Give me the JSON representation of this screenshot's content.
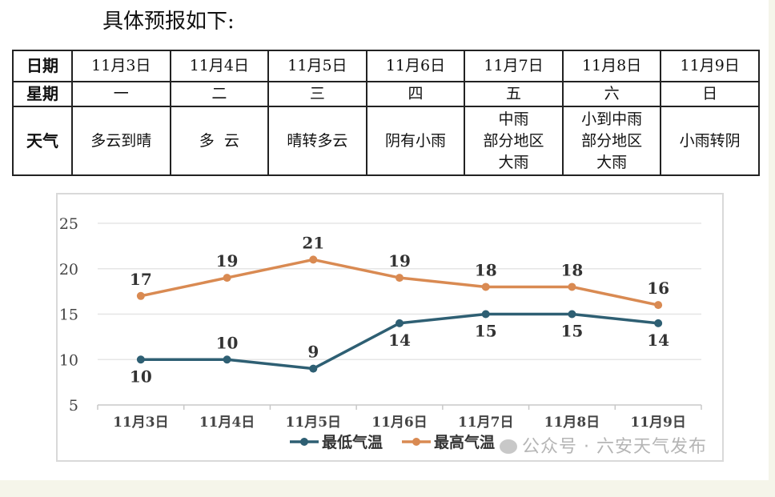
{
  "intro_text": "具体预报如下:",
  "table": {
    "row_labels": {
      "date": "日期",
      "day": "星期",
      "weather": "天气"
    },
    "dates": [
      "11月3日",
      "11月4日",
      "11月5日",
      "11月6日",
      "11月7日",
      "11月8日",
      "11月9日"
    ],
    "weekdays": [
      "一",
      "二",
      "三",
      "四",
      "五",
      "六",
      "日"
    ],
    "weather": [
      [
        "多云到晴"
      ],
      [
        "多  云"
      ],
      [
        "晴转多云"
      ],
      [
        "阴有小雨"
      ],
      [
        "中雨",
        "部分地区",
        "大雨"
      ],
      [
        "小到中雨",
        "部分地区",
        "大雨"
      ],
      [
        "小雨转阴"
      ]
    ]
  },
  "chart_data": {
    "type": "line",
    "categories": [
      "11月3日",
      "11月4日",
      "11月5日",
      "11月6日",
      "11月7日",
      "11月8日",
      "11月9日"
    ],
    "series": [
      {
        "name": "最低气温",
        "values": [
          10,
          10,
          9,
          14,
          15,
          15,
          14
        ],
        "color": "#2e5f73"
      },
      {
        "name": "最高气温",
        "values": [
          17,
          19,
          21,
          19,
          18,
          18,
          16
        ],
        "color": "#d98a52"
      }
    ],
    "ylim": [
      5,
      25
    ],
    "yticks": [
      5,
      10,
      15,
      20,
      25
    ],
    "grid": true,
    "legend": "bottom",
    "title": "",
    "xlabel": "",
    "ylabel": ""
  },
  "watermark": "公众号 · 六安天气发布"
}
